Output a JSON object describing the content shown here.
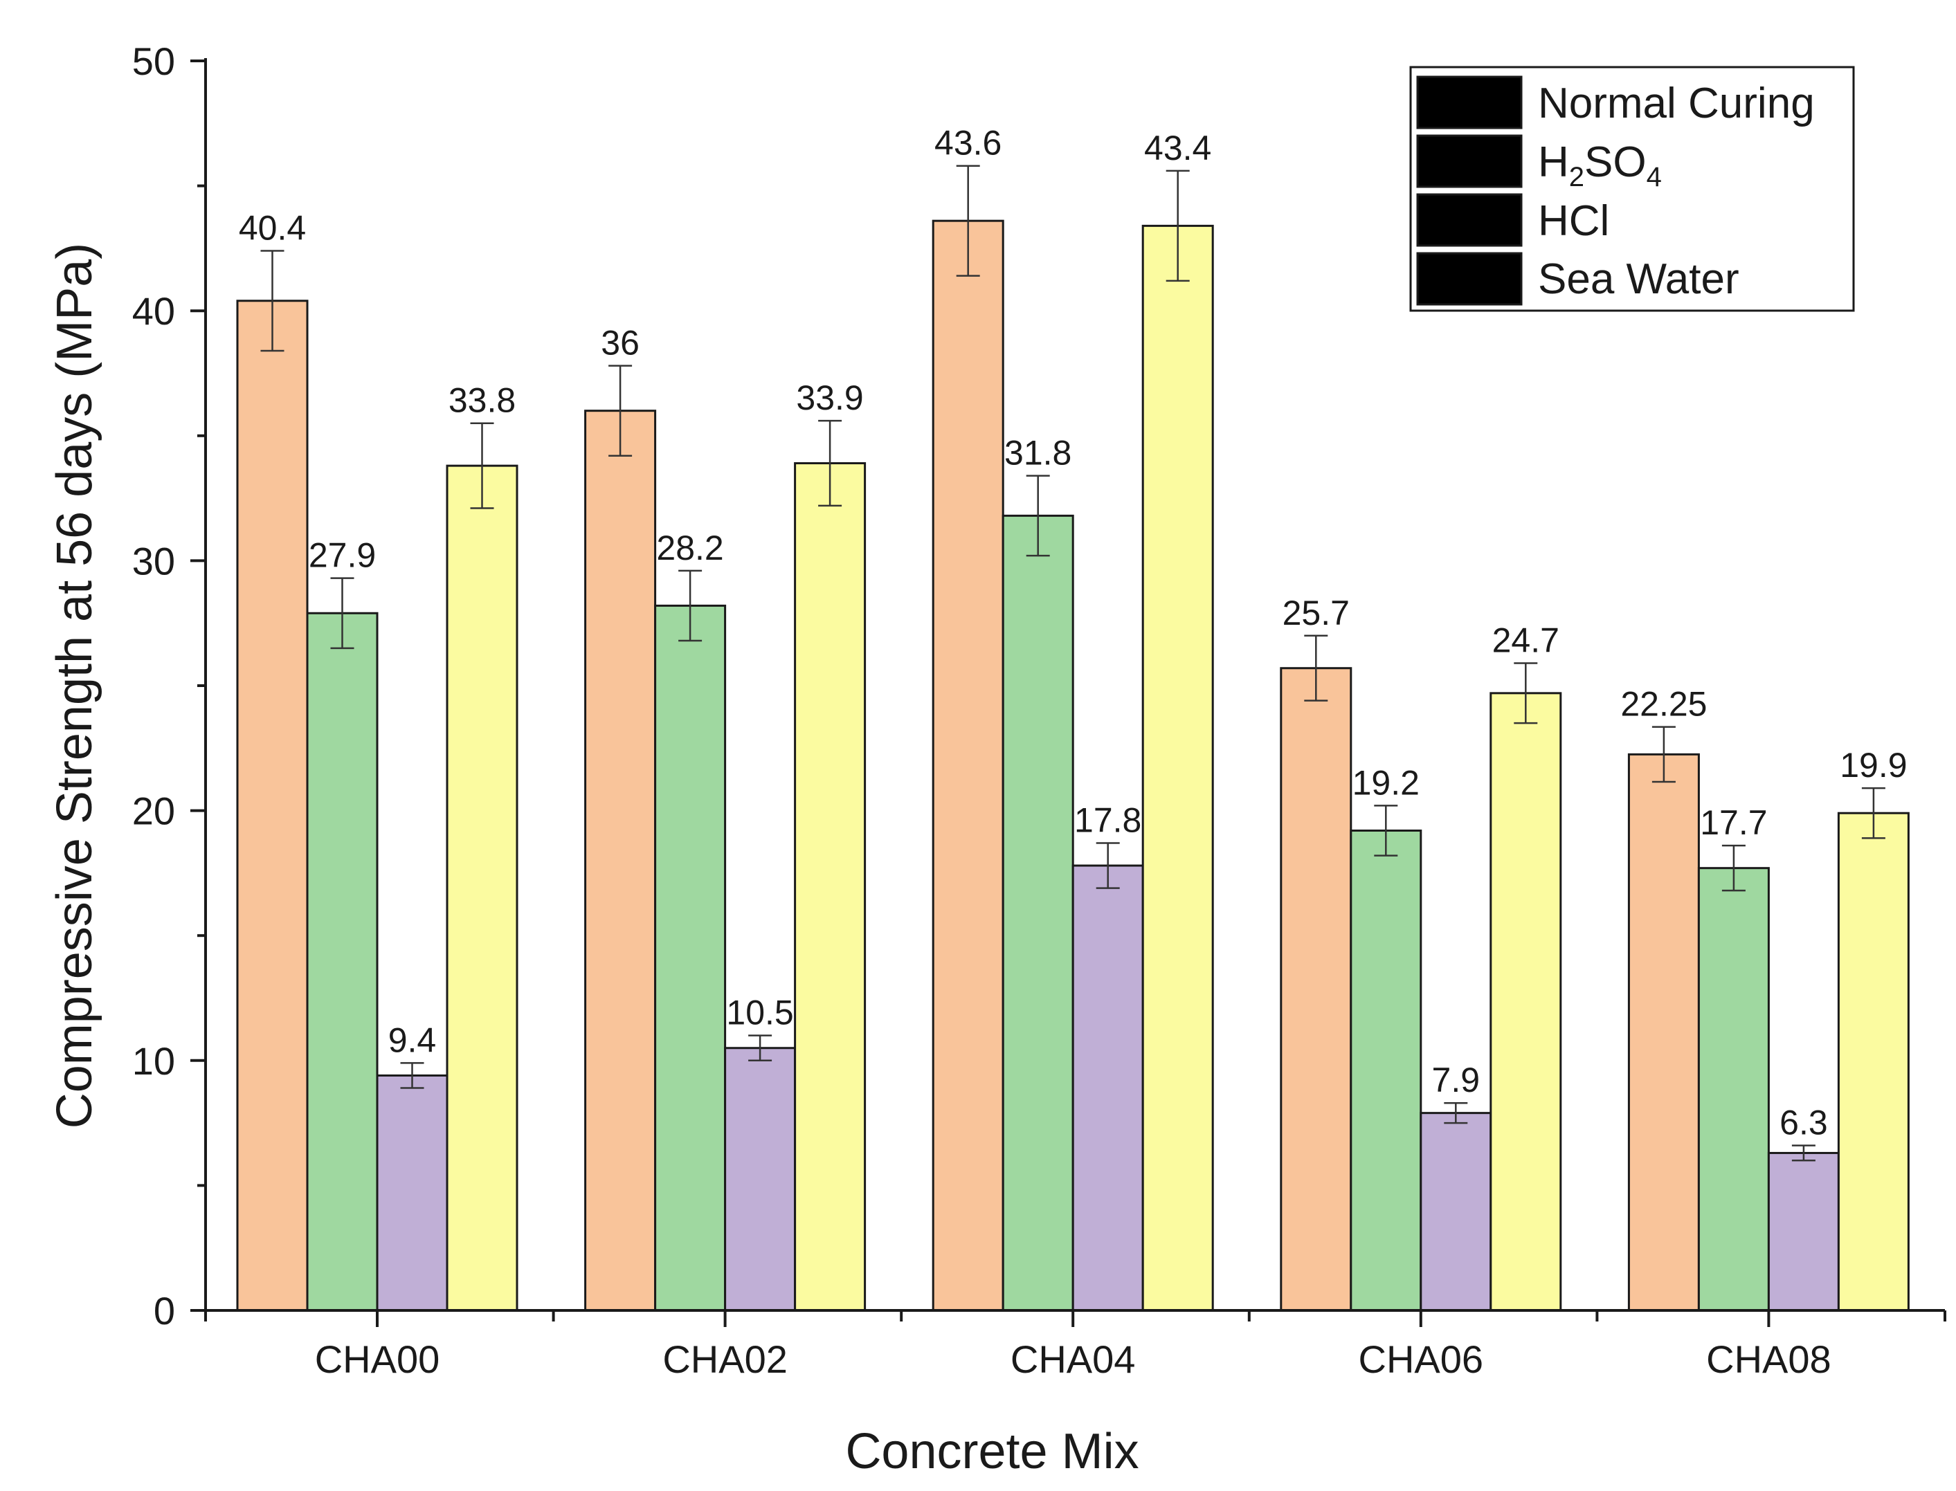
{
  "chart_data": {
    "type": "bar",
    "title": "",
    "xlabel": "Concrete Mix",
    "ylabel": "Compressive Strength at 56 days (MPa)",
    "ylim": [
      0,
      50
    ],
    "yticks": [
      0,
      10,
      20,
      30,
      40,
      50
    ],
    "grid": false,
    "legend_position": "top-right",
    "categories": [
      "CHA00",
      "CHA02",
      "CHA04",
      "CHA06",
      "CHA08"
    ],
    "series": [
      {
        "name": "Normal Curing",
        "color": "#F9C49A",
        "values": [
          40.4,
          36,
          43.6,
          25.7,
          22.25
        ],
        "labels": [
          "40.4",
          "36",
          "43.6",
          "25.7",
          "22.25"
        ],
        "errors": [
          2.0,
          1.8,
          2.2,
          1.3,
          1.1
        ]
      },
      {
        "name": "H2SO4",
        "legend_main": "H",
        "legend_sub1": "2",
        "legend_mid": "SO",
        "legend_sub2": "4",
        "color": "#9FD8A0",
        "values": [
          27.9,
          28.2,
          31.8,
          19.2,
          17.7
        ],
        "labels": [
          "27.9",
          "28.2",
          "31.8",
          "19.2",
          "17.7"
        ],
        "errors": [
          1.4,
          1.4,
          1.6,
          1.0,
          0.9
        ]
      },
      {
        "name": "HCl",
        "color": "#C0AFD6",
        "values": [
          9.4,
          10.5,
          17.8,
          7.9,
          6.3
        ],
        "labels": [
          "9.4",
          "10.5",
          "17.8",
          "7.9",
          "6.3"
        ],
        "errors": [
          0.5,
          0.5,
          0.9,
          0.4,
          0.3
        ]
      },
      {
        "name": "Sea Water",
        "color": "#FBFBA0",
        "values": [
          33.8,
          33.9,
          43.4,
          24.7,
          19.9
        ],
        "labels": [
          "33.8",
          "33.9",
          "43.4",
          "24.7",
          "19.9"
        ],
        "errors": [
          1.7,
          1.7,
          2.2,
          1.2,
          1.0
        ]
      }
    ]
  }
}
